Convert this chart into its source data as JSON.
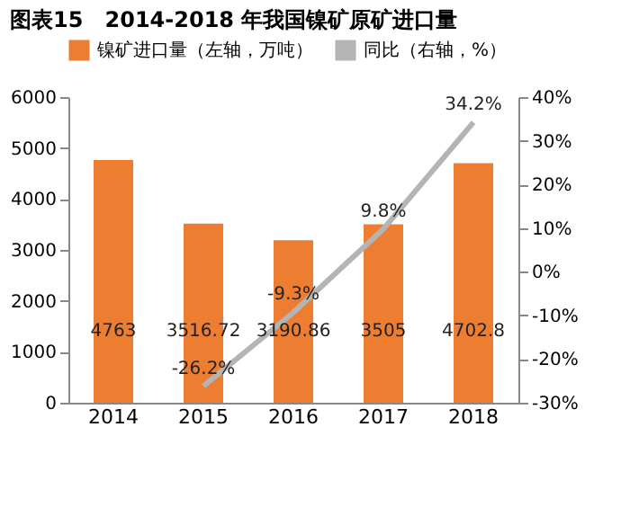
{
  "chart_data": {
    "type": "bar",
    "title": "图表15　2014-2018 年我国镍矿原矿进口量",
    "categories": [
      "2014",
      "2015",
      "2016",
      "2017",
      "2018"
    ],
    "series": [
      {
        "name": "镍矿进口量（左轴，万吨）",
        "color": "#ed7d31",
        "values": [
          4763,
          3516.72,
          3190.86,
          3505,
          4702.8
        ],
        "value_labels": [
          "4763",
          "3516.72",
          "3190.86",
          "3505",
          "4702.8"
        ]
      },
      {
        "name": "同比（右轴，%）",
        "type": "line",
        "axis": "y2",
        "color": "#b4b4b4",
        "values": [
          null,
          -26.2,
          -9.3,
          9.8,
          34.2
        ],
        "value_labels": [
          null,
          "-26.2%",
          "-9.3%",
          "9.8%",
          "34.2%"
        ]
      }
    ],
    "ylim": [
      0,
      6000
    ],
    "yticks": [
      0,
      1000,
      2000,
      3000,
      4000,
      5000,
      6000
    ],
    "y2lim": [
      -30,
      40
    ],
    "y2ticks": [
      {
        "value": -30,
        "label": "-30%"
      },
      {
        "value": -20,
        "label": "-20%"
      },
      {
        "value": -10,
        "label": "-10%"
      },
      {
        "value": 0,
        "label": "0%"
      },
      {
        "value": 10,
        "label": "10%"
      },
      {
        "value": 20,
        "label": "20%"
      },
      {
        "value": 30,
        "label": "30%"
      },
      {
        "value": 40,
        "label": "40%"
      }
    ],
    "legend": "top",
    "grid": false
  }
}
